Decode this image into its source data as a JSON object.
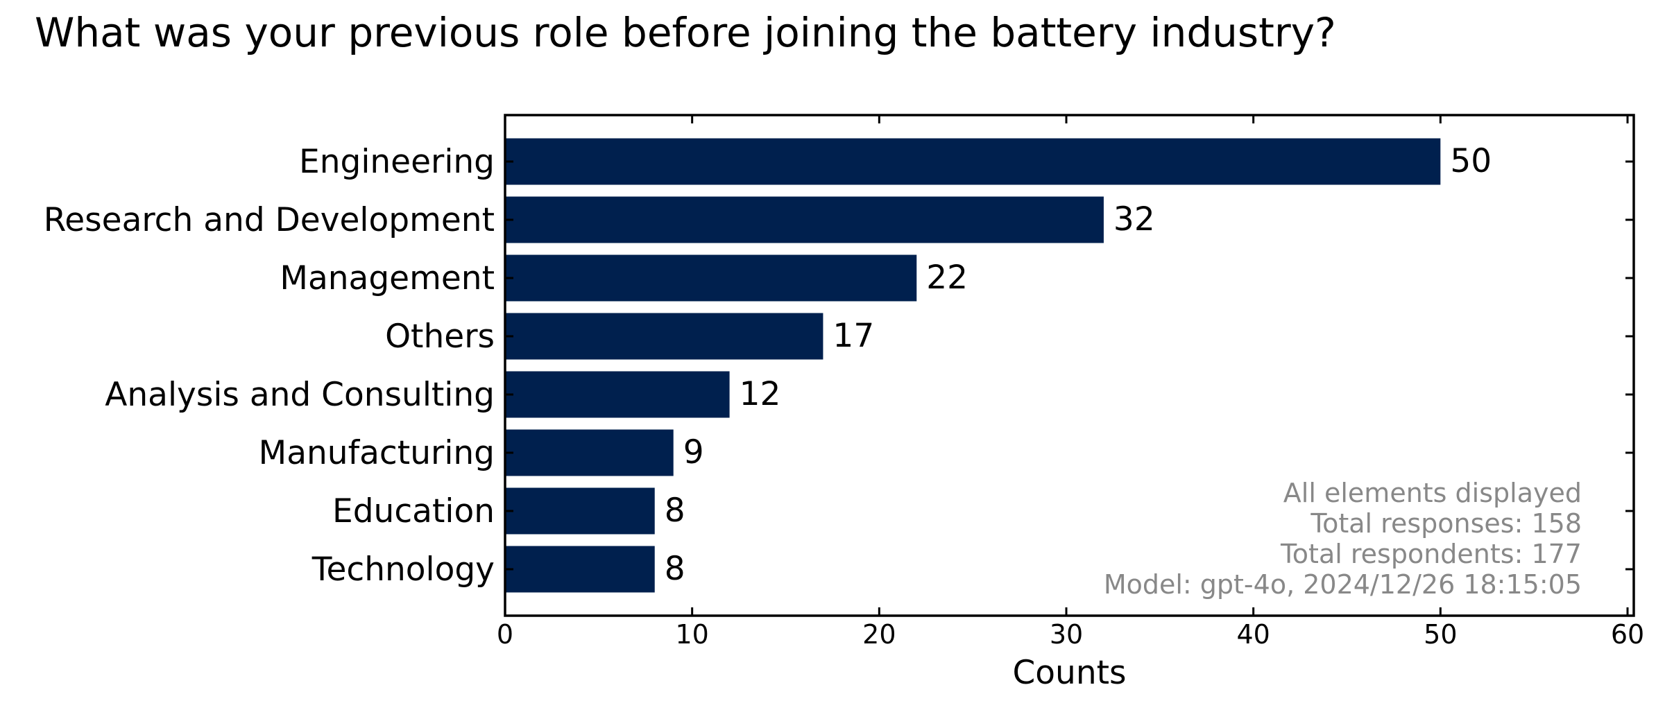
{
  "chart_data": {
    "type": "bar",
    "orientation": "horizontal",
    "title": "What was your previous role before joining the battery industry?",
    "categories": [
      "Engineering",
      "Research and Development",
      "Management",
      "Others",
      "Analysis and Consulting",
      "Manufacturing",
      "Education",
      "Technology"
    ],
    "values": [
      50,
      32,
      22,
      17,
      12,
      9,
      8,
      8
    ],
    "xlabel": "Counts",
    "ylabel": "",
    "xlim": [
      0,
      60
    ],
    "xticks": [
      "0",
      "10",
      "20",
      "30",
      "40",
      "50",
      "60"
    ],
    "grid": false,
    "bar_color": "#00204e",
    "annotations": [
      "All elements displayed",
      "Total responses: 158",
      "Total respondents: 177",
      "Model: gpt-4o, 2024/12/26 18:15:05"
    ],
    "annotation_color": "#888888",
    "annotation_placement": "bottom-right"
  }
}
